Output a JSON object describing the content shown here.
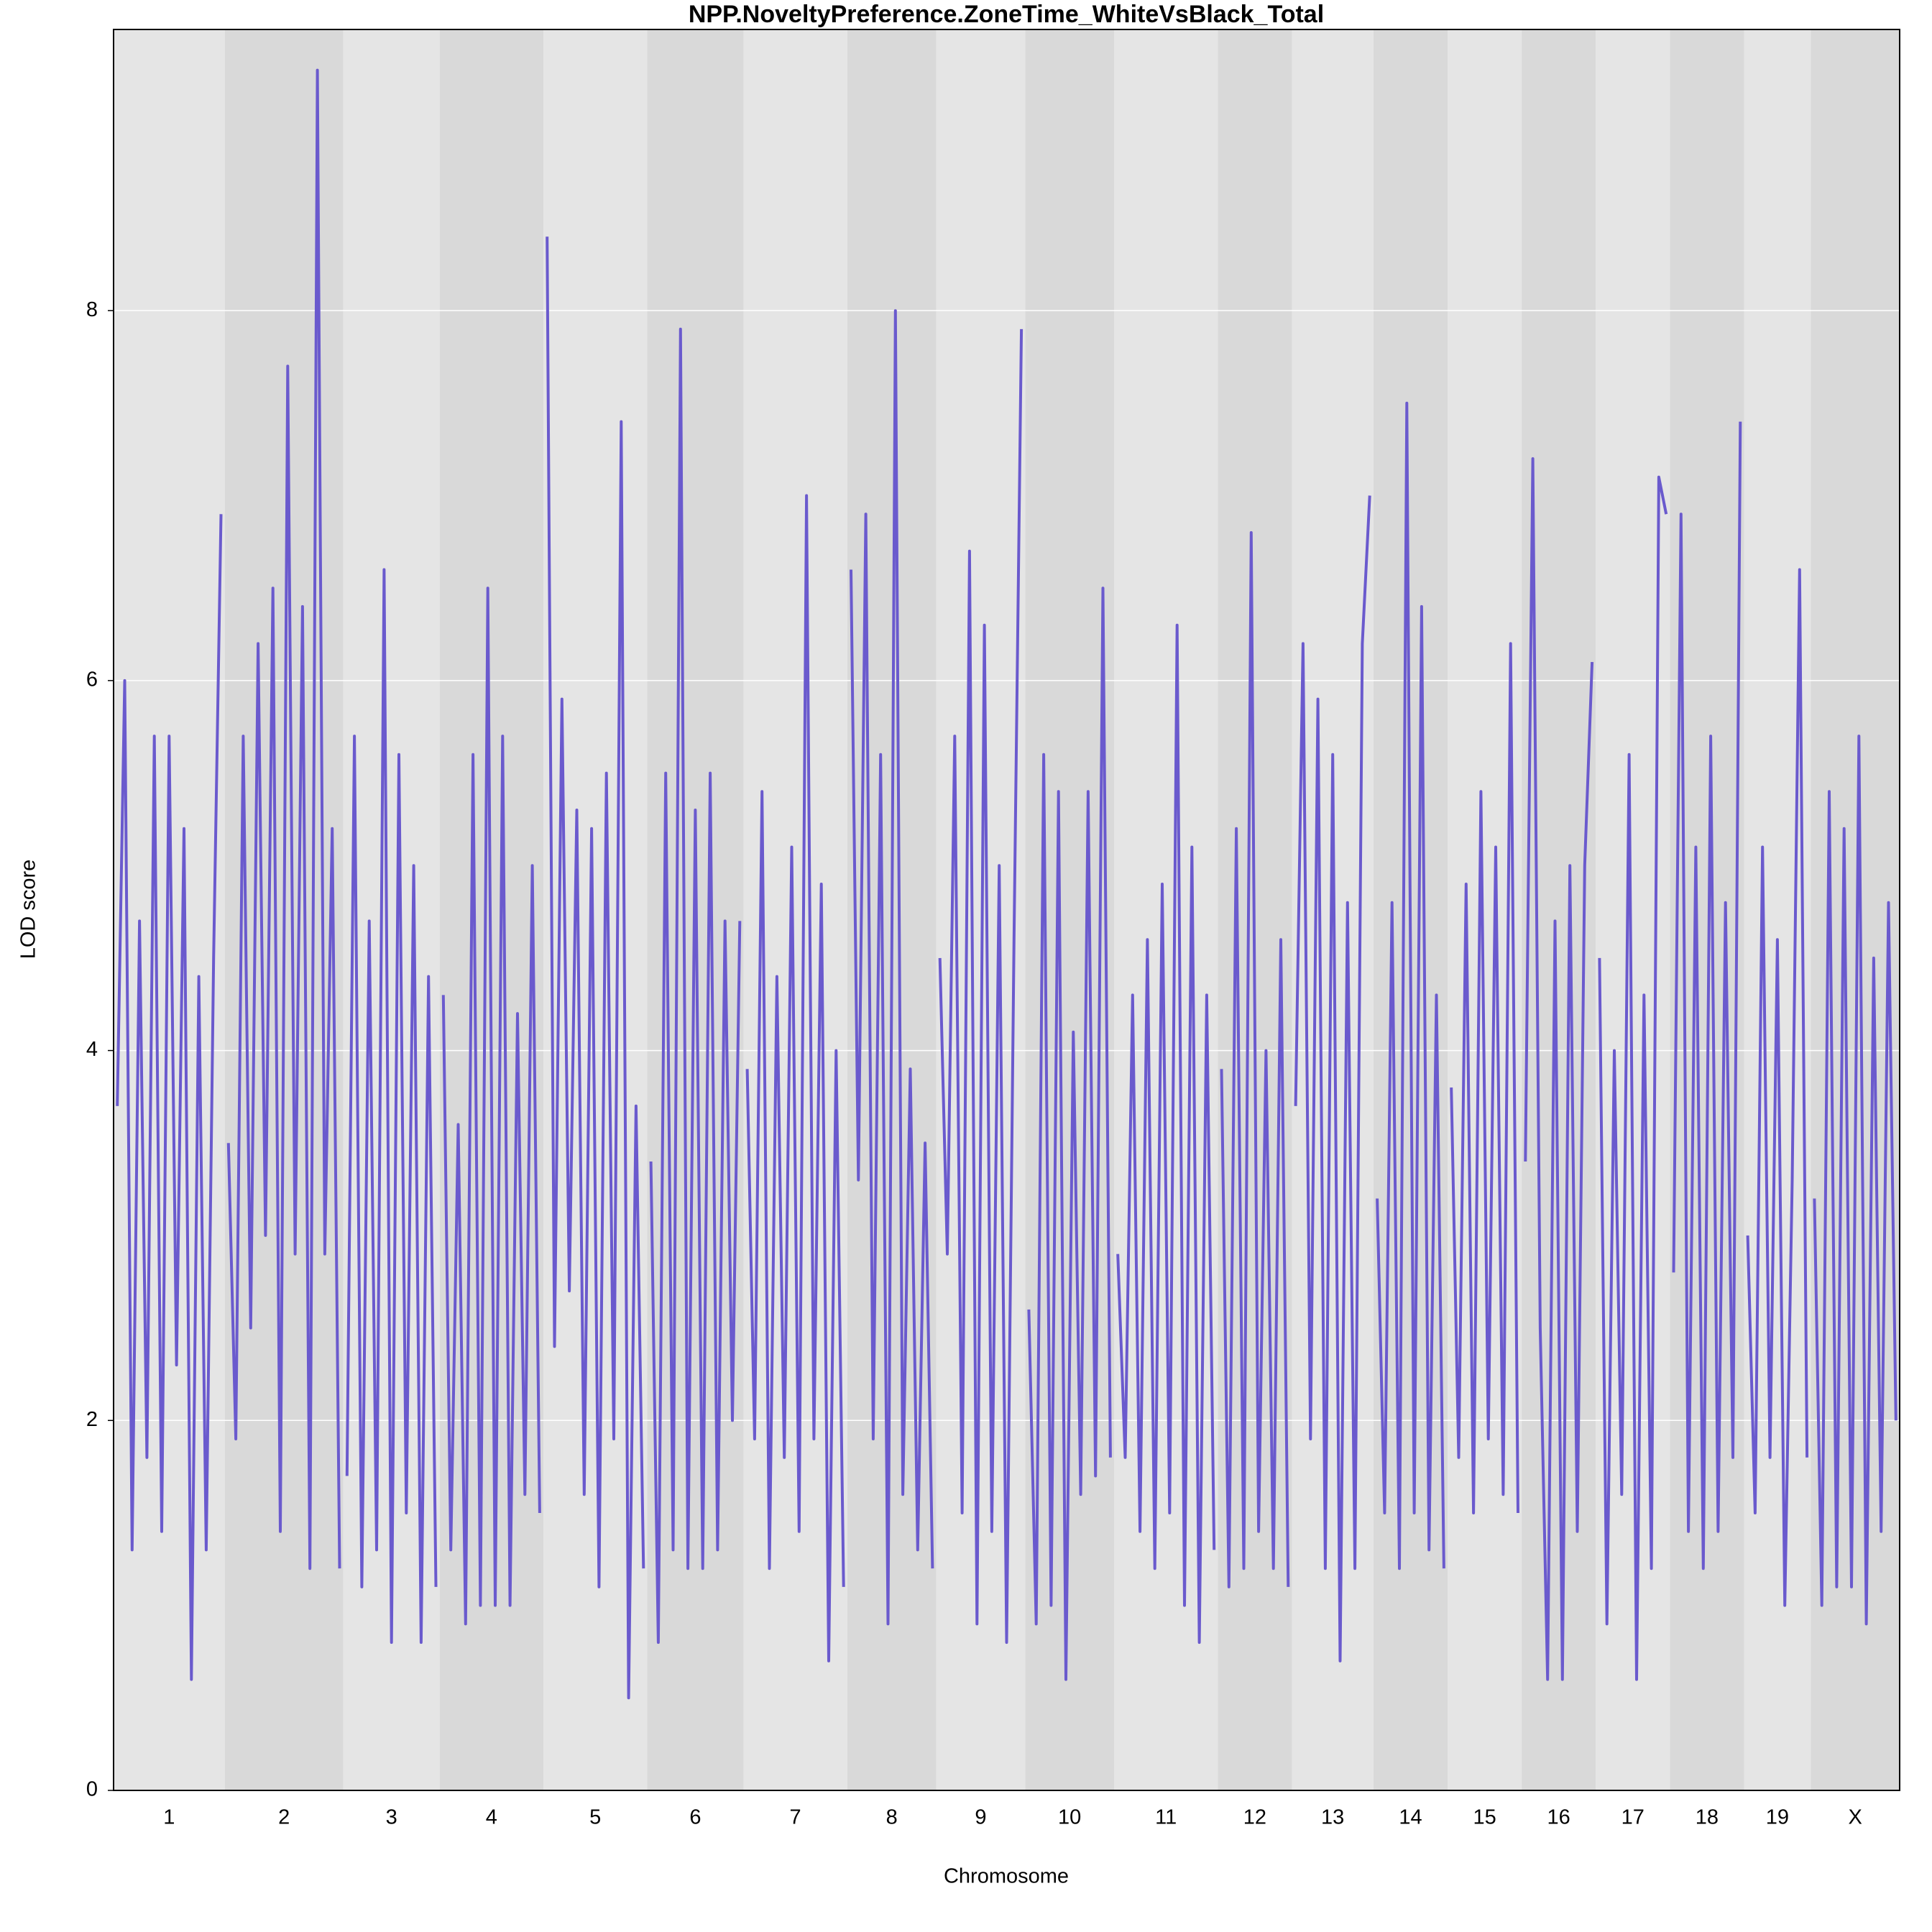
{
  "chart_data": {
    "type": "line",
    "title": "NPP.NoveltyPreference.ZoneTime_WhiteVsBlack_Total",
    "xlabel": "Chromosome",
    "ylabel": "LOD score",
    "color": "#6a5acd",
    "ylim": [
      0,
      9.52
    ],
    "yticks": [
      0,
      2,
      4,
      6,
      8
    ],
    "grid": true,
    "series": [
      {
        "name": "1",
        "values": [
          3.7,
          6.0,
          1.3,
          4.7,
          1.8,
          5.7,
          1.4,
          5.7,
          2.3,
          5.2,
          0.6,
          4.4,
          1.3,
          4.5,
          6.9
        ]
      },
      {
        "name": "2",
        "values": [
          3.5,
          1.9,
          5.7,
          2.5,
          6.2,
          3.0,
          6.5,
          1.4,
          7.7,
          2.9,
          6.4,
          1.2,
          9.3,
          2.9,
          5.2,
          1.2
        ]
      },
      {
        "name": "3",
        "values": [
          1.7,
          5.7,
          1.1,
          4.7,
          1.3,
          6.6,
          0.8,
          5.6,
          1.5,
          5.0,
          0.8,
          4.4,
          1.1
        ]
      },
      {
        "name": "4",
        "values": [
          4.3,
          1.3,
          3.6,
          0.9,
          5.6,
          1.0,
          6.5,
          1.0,
          5.7,
          1.0,
          4.2,
          1.6,
          5.0,
          1.5
        ]
      },
      {
        "name": "5",
        "values": [
          8.4,
          2.4,
          5.9,
          2.7,
          5.3,
          1.6,
          5.2,
          1.1,
          5.5,
          1.9,
          7.4,
          0.5,
          3.7,
          1.2
        ]
      },
      {
        "name": "6",
        "values": [
          3.4,
          0.8,
          5.5,
          1.3,
          7.9,
          1.2,
          5.3,
          1.2,
          5.5,
          1.3,
          4.7,
          2.0,
          4.7
        ]
      },
      {
        "name": "7",
        "values": [
          3.9,
          1.9,
          5.4,
          1.2,
          4.4,
          1.8,
          5.1,
          1.4,
          7.0,
          1.9,
          4.9,
          0.7,
          4.0,
          1.1
        ]
      },
      {
        "name": "8",
        "values": [
          6.6,
          3.3,
          6.9,
          1.9,
          5.6,
          0.9,
          8.0,
          1.6,
          3.9,
          1.3,
          3.5,
          1.2
        ]
      },
      {
        "name": "9",
        "values": [
          4.5,
          2.9,
          5.7,
          1.5,
          6.7,
          0.9,
          6.3,
          1.4,
          5.0,
          0.8,
          4.6,
          7.9
        ]
      },
      {
        "name": "10",
        "values": [
          2.6,
          0.9,
          5.6,
          1.0,
          5.4,
          0.6,
          4.1,
          1.6,
          5.4,
          1.7,
          6.5,
          1.8
        ]
      },
      {
        "name": "11",
        "values": [
          2.9,
          1.8,
          4.3,
          1.4,
          4.6,
          1.2,
          4.9,
          1.5,
          6.3,
          1.0,
          5.1,
          0.8,
          4.3,
          1.3
        ]
      },
      {
        "name": "12",
        "values": [
          3.9,
          1.1,
          5.2,
          1.2,
          6.8,
          1.4,
          4.0,
          1.2,
          4.6,
          1.1
        ]
      },
      {
        "name": "13",
        "values": [
          3.7,
          6.2,
          1.9,
          5.9,
          1.2,
          5.6,
          0.7,
          4.8,
          1.2,
          6.2,
          7.0
        ]
      },
      {
        "name": "14",
        "values": [
          3.2,
          1.5,
          4.8,
          1.2,
          7.5,
          1.5,
          6.4,
          1.3,
          4.3,
          1.2
        ]
      },
      {
        "name": "15",
        "values": [
          3.8,
          1.8,
          4.9,
          1.5,
          5.4,
          1.9,
          5.1,
          1.6,
          6.2,
          1.5
        ]
      },
      {
        "name": "16",
        "values": [
          3.4,
          7.2,
          2.5,
          0.6,
          4.7,
          0.6,
          5.0,
          1.4,
          5.0,
          6.1
        ]
      },
      {
        "name": "17",
        "values": [
          4.5,
          0.9,
          4.0,
          1.6,
          5.6,
          0.6,
          4.3,
          1.2,
          7.1,
          6.9
        ]
      },
      {
        "name": "18",
        "values": [
          2.8,
          6.9,
          1.4,
          5.1,
          1.2,
          5.7,
          1.4,
          4.8,
          1.8,
          7.4
        ]
      },
      {
        "name": "19",
        "values": [
          3.0,
          1.5,
          5.1,
          1.8,
          4.6,
          1.0,
          3.3,
          6.6,
          1.8
        ]
      },
      {
        "name": "X",
        "values": [
          3.2,
          1.0,
          5.4,
          1.1,
          5.2,
          1.1,
          5.7,
          0.9,
          4.5,
          1.4,
          4.8,
          2.0
        ]
      }
    ]
  }
}
